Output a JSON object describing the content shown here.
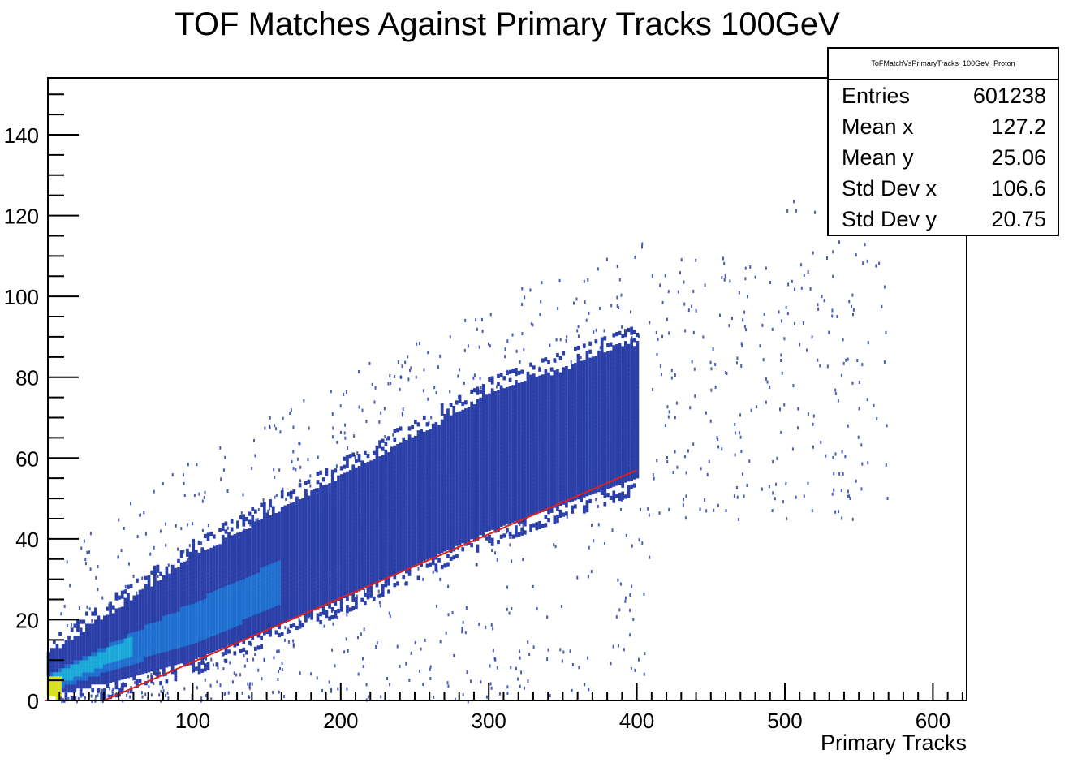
{
  "chart_data": {
    "type": "heatmap",
    "title": "TOF Matches Against Primary Tracks 100GeV",
    "xlabel": "Primary Tracks",
    "ylabel": "",
    "xlim": [
      0,
      620
    ],
    "ylim": [
      0,
      150
    ],
    "x_ticks": [
      100,
      200,
      300,
      400,
      500,
      600
    ],
    "y_ticks": [
      0,
      20,
      40,
      60,
      80,
      100,
      120,
      140
    ],
    "colors": {
      "bulk": "#2b3fa8",
      "medium": "#1f6fd0",
      "high": "#1aa8d8",
      "peak": "#d8e020",
      "fit_line": "#e02020",
      "frame": "#000000"
    },
    "band": {
      "description_points": [
        {
          "x": 0,
          "y_low": 0,
          "y_high": 10
        },
        {
          "x": 100,
          "y_low": 10,
          "y_high": 35
        },
        {
          "x": 200,
          "y_low": 25,
          "y_high": 55
        },
        {
          "x": 300,
          "y_low": 42,
          "y_high": 75
        },
        {
          "x": 400,
          "y_low": 55,
          "y_high": 88
        }
      ]
    },
    "fit_line": {
      "x": [
        40,
        400
      ],
      "y": [
        0,
        57
      ]
    },
    "stats_box": {
      "name": "ToFMatchVsPrimaryTracks_100GeV_Proton",
      "entries": {
        "label": "Entries",
        "value": "601238"
      },
      "mean_x": {
        "label": "Mean x",
        "value": "127.2"
      },
      "mean_y": {
        "label": "Mean y",
        "value": "25.06"
      },
      "std_x": {
        "label": "Std Dev x",
        "value": "106.6"
      },
      "std_y": {
        "label": "Std Dev y",
        "value": "20.75"
      }
    }
  }
}
